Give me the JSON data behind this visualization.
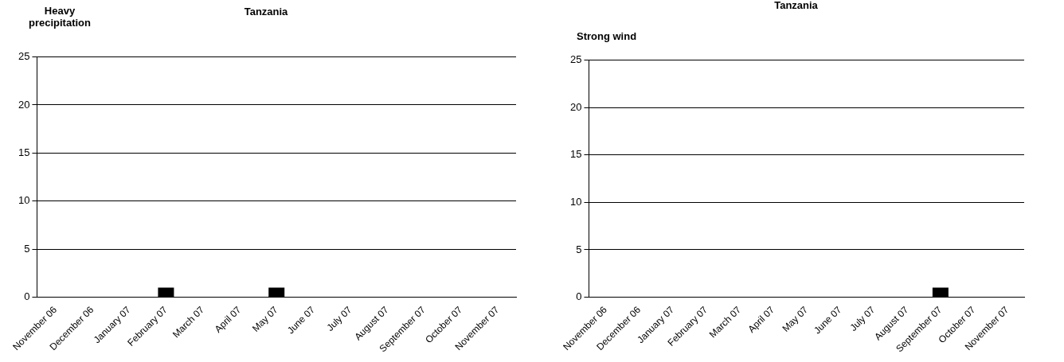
{
  "chart_data": [
    {
      "type": "bar",
      "title": "Tanzania",
      "ylabel": "Heavy precipitation",
      "categories": [
        "November 06",
        "December 06",
        "January 07",
        "February 07",
        "March 07",
        "April 07",
        "May 07",
        "June 07",
        "July 07",
        "August 07",
        "September 07",
        "October 07",
        "November 07"
      ],
      "series": [
        {
          "color": "#000000",
          "values": [
            0,
            0,
            0,
            1,
            0,
            0,
            1,
            0,
            0,
            0,
            0,
            0,
            0
          ]
        }
      ],
      "ylim": [
        0,
        25
      ],
      "yticks": [
        0,
        5,
        10,
        15,
        20,
        25
      ],
      "grid": "y",
      "legend": false
    },
    {
      "type": "bar",
      "title": "Tanzania",
      "ylabel": "Strong wind",
      "categories": [
        "November 06",
        "December 06",
        "January 07",
        "February 07",
        "March 07",
        "April 07",
        "May 07",
        "June 07",
        "July 07",
        "August 07",
        "September 07",
        "October 07",
        "November 07"
      ],
      "series": [
        {
          "color": "#000000",
          "values": [
            0,
            0,
            0,
            0,
            0,
            0,
            0,
            0,
            0,
            0,
            1,
            0,
            0
          ]
        }
      ],
      "ylim": [
        0,
        25
      ],
      "yticks": [
        0,
        5,
        10,
        15,
        20,
        25
      ],
      "grid": "y",
      "legend": false
    }
  ]
}
